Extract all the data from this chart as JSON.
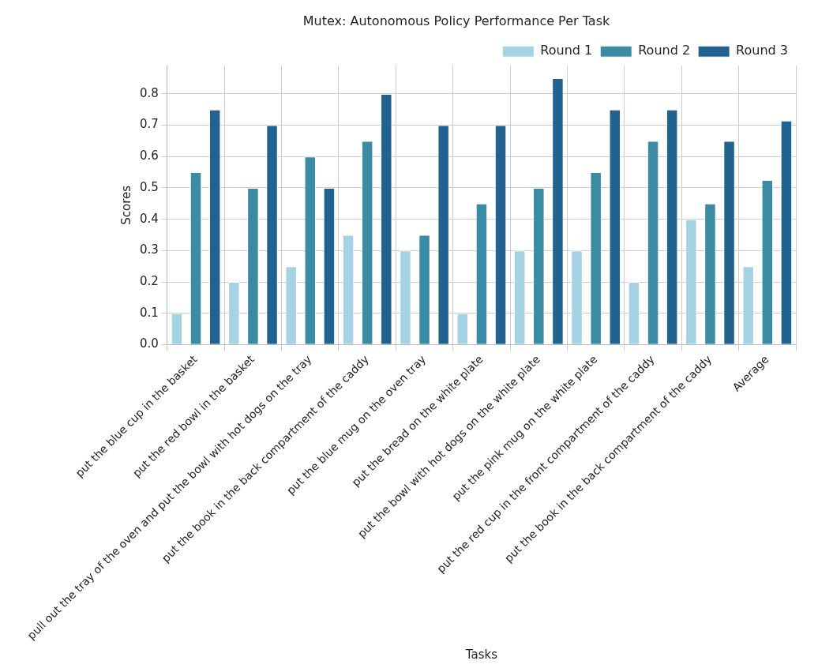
{
  "chart_data": {
    "type": "bar",
    "title": "Mutex: Autonomous Policy Performance Per Task",
    "xlabel": "Tasks",
    "ylabel": "Scores",
    "categories": [
      "put the blue cup in the basket",
      "put the red bowl in the basket",
      "pull out the tray of the oven and put the bowl with hot dogs on the tray",
      "put the book in the back compartment of the caddy",
      "put the blue mug on the oven tray",
      "put the bread on the white plate",
      "put the bowl with hot dogs on the white plate",
      "put the pink mug on the white plate",
      "put the red cup in the front compartment of the caddy",
      "put the book in the back compartment of the caddy",
      "Average"
    ],
    "series": [
      {
        "name": "Round 1",
        "color": "#a6d3e3",
        "values": [
          0.1,
          0.2,
          0.25,
          0.35,
          0.3,
          0.1,
          0.3,
          0.3,
          0.2,
          0.4,
          0.25
        ]
      },
      {
        "name": "Round 2",
        "color": "#3a8ba3",
        "values": [
          0.55,
          0.5,
          0.6,
          0.65,
          0.35,
          0.45,
          0.5,
          0.55,
          0.65,
          0.45,
          0.525
        ]
      },
      {
        "name": "Round 3",
        "color": "#21628f",
        "values": [
          0.75,
          0.7,
          0.5,
          0.8,
          0.7,
          0.7,
          0.85,
          0.75,
          0.75,
          0.65,
          0.715
        ]
      }
    ],
    "ylim": [
      0,
      0.89
    ],
    "yticks": [
      {
        "value": 0,
        "label": "0.0"
      },
      0.1,
      0.2,
      0.3,
      0.4,
      0.5,
      0.6,
      0.7,
      0.8
    ],
    "grid": true,
    "legend": "top right"
  }
}
